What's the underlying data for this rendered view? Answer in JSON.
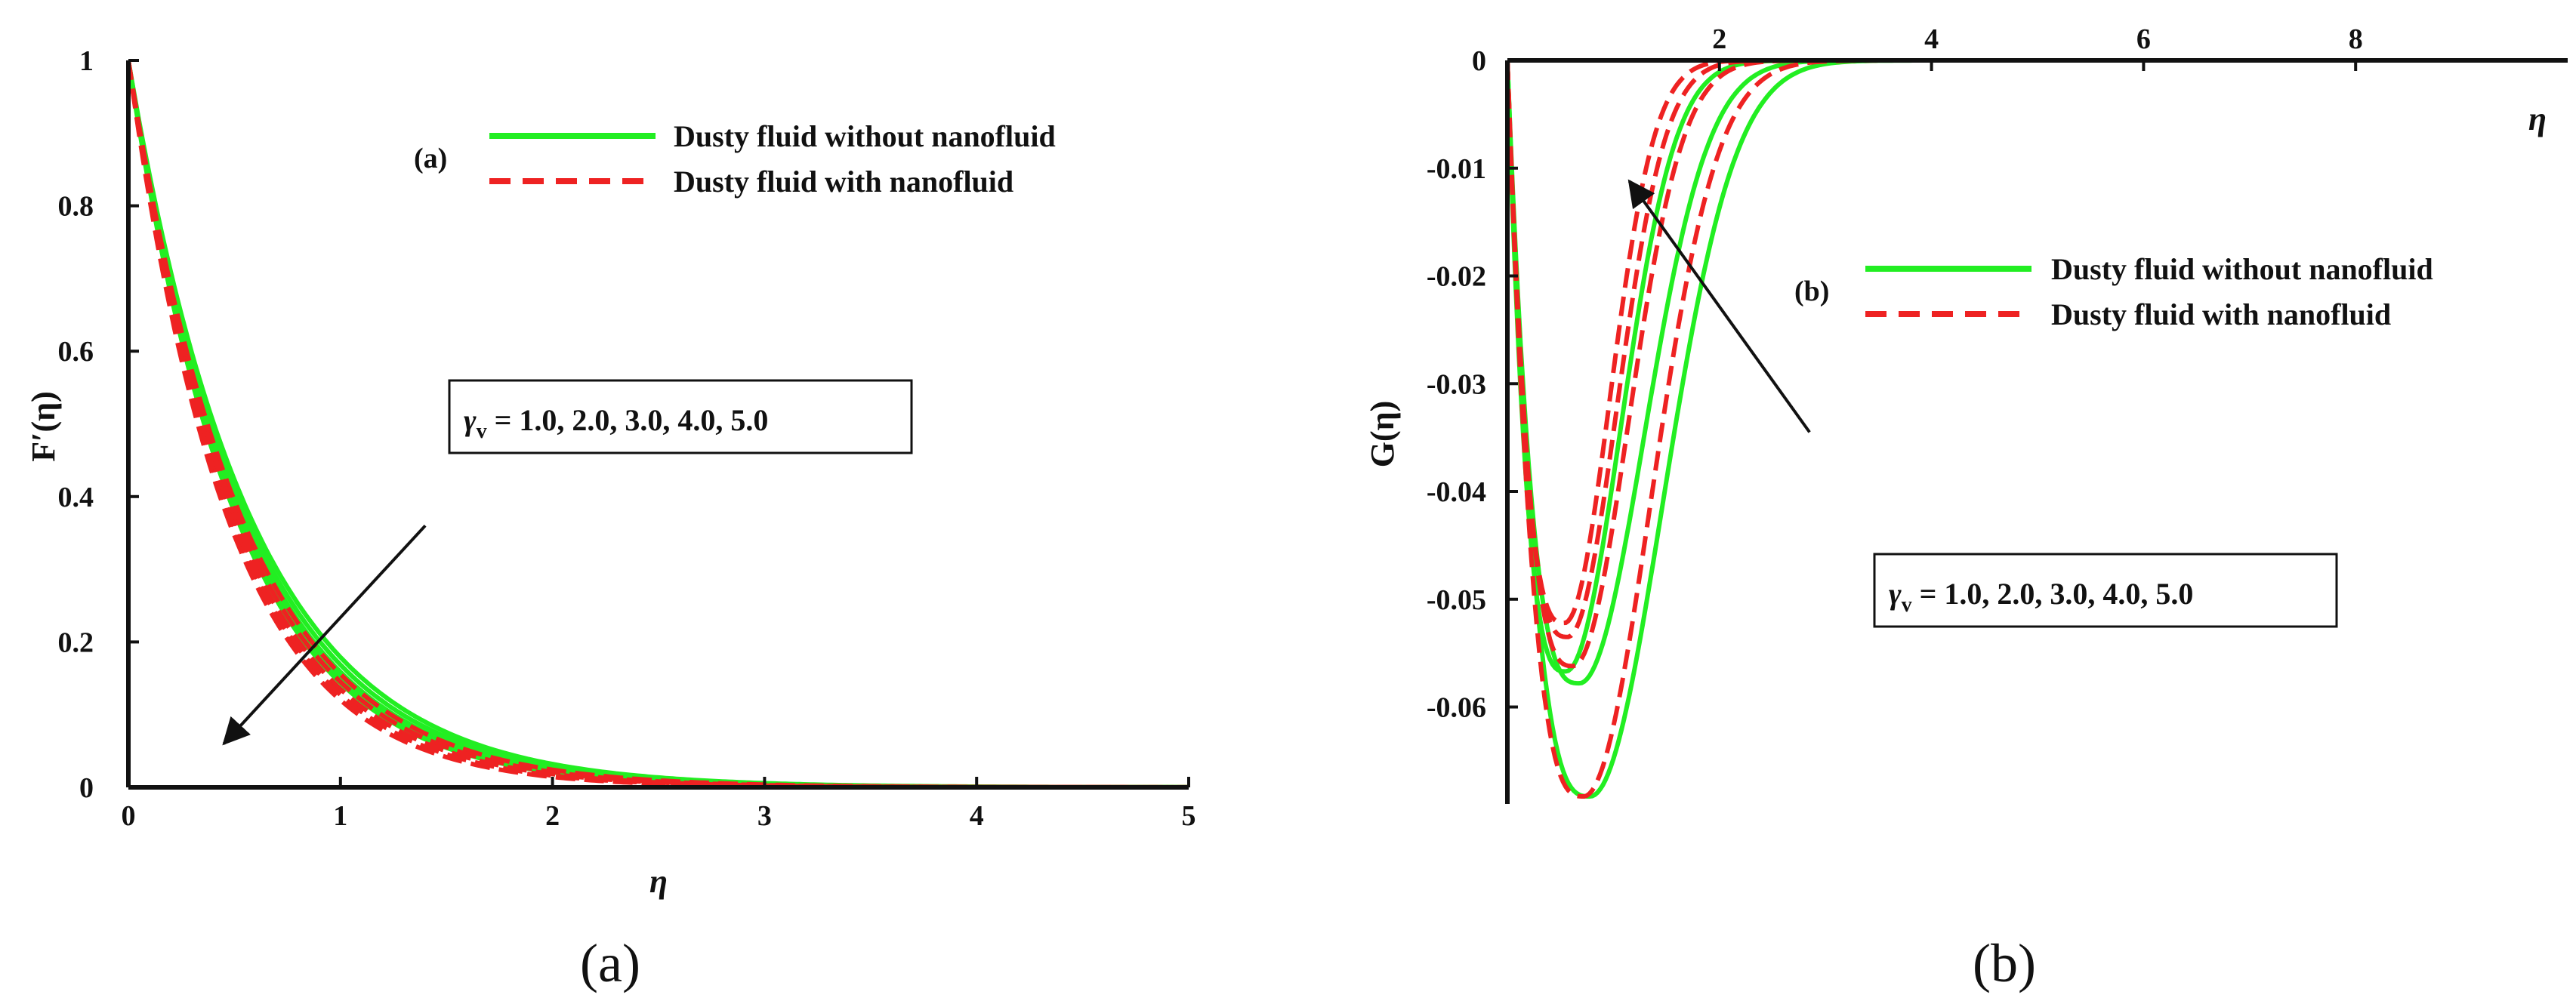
{
  "chart_data": [
    {
      "type": "line",
      "panel": "a",
      "caption": "(a)",
      "panel_tag": "(a)",
      "xlabel": "η",
      "ylabel": "F′(η)",
      "xlim": [
        0,
        5
      ],
      "ylim": [
        0,
        1
      ],
      "x_ticks": [
        "0",
        "1",
        "2",
        "3",
        "4",
        "5"
      ],
      "y_ticks": [
        "0",
        "0.2",
        "0.4",
        "0.6",
        "0.8",
        "1"
      ],
      "x_tick_values": [
        0,
        1,
        2,
        3,
        4,
        5
      ],
      "y_tick_values": [
        0,
        0.2,
        0.4,
        0.6,
        0.8,
        1
      ],
      "annotation": {
        "symbol": "γ",
        "subscript": "v",
        "text": " = 1.0, 2.0, 3.0, 4.0, 5.0"
      },
      "arrow": {
        "from": [
          1.4,
          0.36
        ],
        "to": [
          0.45,
          0.06
        ]
      },
      "legend": [
        {
          "label": "Dusty fluid without nanofluid",
          "color": "#22ee22",
          "style": "solid"
        },
        {
          "label": "Dusty fluid with nanofluid",
          "color": "#ee2222",
          "style": "dashed"
        }
      ],
      "series": [
        {
          "name": "Dusty fluid without nanofluid",
          "gamma_v": 1.0,
          "model": "exp",
          "a": 1.72
        },
        {
          "name": "Dusty fluid without nanofluid",
          "gamma_v": 2.0,
          "model": "exp",
          "a": 1.78
        },
        {
          "name": "Dusty fluid without nanofluid",
          "gamma_v": 3.0,
          "model": "exp",
          "a": 1.84
        },
        {
          "name": "Dusty fluid without nanofluid",
          "gamma_v": 4.0,
          "model": "exp",
          "a": 1.89
        },
        {
          "name": "Dusty fluid without nanofluid",
          "gamma_v": 5.0,
          "model": "exp",
          "a": 1.94
        },
        {
          "name": "Dusty fluid with nanofluid",
          "gamma_v": 1.0,
          "model": "exp",
          "a": 1.86
        },
        {
          "name": "Dusty fluid with nanofluid",
          "gamma_v": 2.0,
          "model": "exp",
          "a": 1.93
        },
        {
          "name": "Dusty fluid with nanofluid",
          "gamma_v": 3.0,
          "model": "exp",
          "a": 2.0
        },
        {
          "name": "Dusty fluid with nanofluid",
          "gamma_v": 4.0,
          "model": "exp",
          "a": 2.06
        },
        {
          "name": "Dusty fluid with nanofluid",
          "gamma_v": 5.0,
          "model": "exp",
          "a": 2.12
        }
      ]
    },
    {
      "type": "line",
      "panel": "b",
      "caption": "(b)",
      "panel_tag": "(b)",
      "xlabel": "η",
      "ylabel": "G(η)",
      "xlim": [
        0,
        10
      ],
      "ylim": [
        -0.069,
        0
      ],
      "x_ticks": [
        "2",
        "4",
        "6",
        "8"
      ],
      "y_ticks": [
        "0",
        "-0.01",
        "-0.02",
        "-0.03",
        "-0.04",
        "-0.05",
        "-0.06"
      ],
      "x_tick_values": [
        2,
        4,
        6,
        8
      ],
      "y_tick_values": [
        0,
        -0.01,
        -0.02,
        -0.03,
        -0.04,
        -0.05,
        -0.06
      ],
      "annotation": {
        "symbol": "γ",
        "subscript": "v",
        "text": " = 1.0, 2.0, 3.0, 4.0, 5.0"
      },
      "arrow": {
        "from": [
          2.85,
          -0.0345
        ],
        "to": [
          1.15,
          -0.0112
        ]
      },
      "legend": [
        {
          "label": "Dusty fluid without nanofluid",
          "color": "#22ee22",
          "style": "solid"
        },
        {
          "label": "Dusty fluid with nanofluid",
          "color": "#ee2222",
          "style": "dashed"
        }
      ],
      "series": [
        {
          "name": "Dusty fluid without nanofluid",
          "gamma_v": 1.0,
          "min_x": 0.78,
          "min_y": -0.0683,
          "decay": 0.74
        },
        {
          "name": "Dusty fluid without nanofluid",
          "gamma_v": 2.0,
          "min_x": 0.68,
          "min_y": -0.0578,
          "decay": 0.66
        },
        {
          "name": "Dusty fluid without nanofluid",
          "gamma_v": 3.0,
          "min_x": 0.55,
          "min_y": -0.0567,
          "decay": 0.56
        },
        {
          "name": "Dusty fluid with nanofluid",
          "gamma_v": 1.0,
          "min_x": 0.72,
          "min_y": -0.0683,
          "decay": 0.68
        },
        {
          "name": "Dusty fluid with nanofluid",
          "gamma_v": 2.0,
          "min_x": 0.62,
          "min_y": -0.0562,
          "decay": 0.56
        },
        {
          "name": "Dusty fluid with nanofluid",
          "gamma_v": 3.0,
          "min_x": 0.57,
          "min_y": -0.0535,
          "decay": 0.5
        },
        {
          "name": "Dusty fluid with nanofluid",
          "gamma_v": 4.0,
          "min_x": 0.54,
          "min_y": -0.0522,
          "decay": 0.46
        }
      ]
    }
  ]
}
